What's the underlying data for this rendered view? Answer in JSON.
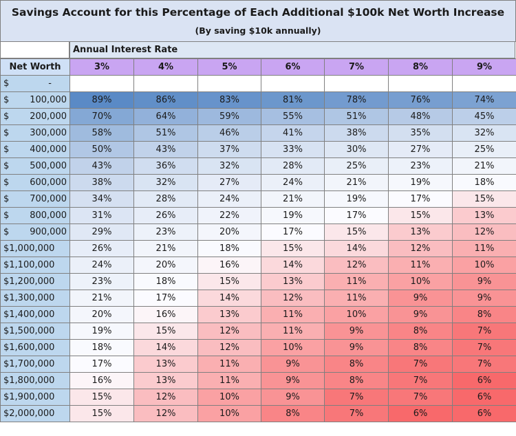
{
  "chart_data": {
    "type": "table",
    "title": "Savings Account for this Percentage of Each Additional $100k Net Worth Increase",
    "subtitle": "(By saving $10k annually)",
    "column_group_label": "Annual Interest Rate",
    "row_header": "Net Worth",
    "columns": [
      "3%",
      "4%",
      "5%",
      "6%",
      "7%",
      "8%",
      "9%"
    ],
    "rows": [
      {
        "label": [
          "$",
          "-"
        ],
        "values": [
          "",
          "",
          "",
          "",
          "",
          "",
          ""
        ]
      },
      {
        "label": [
          "$",
          "100,000"
        ],
        "values": [
          "89%",
          "86%",
          "83%",
          "81%",
          "78%",
          "76%",
          "74%"
        ]
      },
      {
        "label": [
          "$",
          "200,000"
        ],
        "values": [
          "70%",
          "64%",
          "59%",
          "55%",
          "51%",
          "48%",
          "45%"
        ]
      },
      {
        "label": [
          "$",
          "300,000"
        ],
        "values": [
          "58%",
          "51%",
          "46%",
          "41%",
          "38%",
          "35%",
          "32%"
        ]
      },
      {
        "label": [
          "$",
          "400,000"
        ],
        "values": [
          "50%",
          "43%",
          "37%",
          "33%",
          "30%",
          "27%",
          "25%"
        ]
      },
      {
        "label": [
          "$",
          "500,000"
        ],
        "values": [
          "43%",
          "36%",
          "32%",
          "28%",
          "25%",
          "23%",
          "21%"
        ]
      },
      {
        "label": [
          "$",
          "600,000"
        ],
        "values": [
          "38%",
          "32%",
          "27%",
          "24%",
          "21%",
          "19%",
          "18%"
        ]
      },
      {
        "label": [
          "$",
          "700,000"
        ],
        "values": [
          "34%",
          "28%",
          "24%",
          "21%",
          "19%",
          "17%",
          "15%"
        ]
      },
      {
        "label": [
          "$",
          "800,000"
        ],
        "values": [
          "31%",
          "26%",
          "22%",
          "19%",
          "17%",
          "15%",
          "13%"
        ]
      },
      {
        "label": [
          "$",
          "900,000"
        ],
        "values": [
          "29%",
          "23%",
          "20%",
          "17%",
          "15%",
          "13%",
          "12%"
        ]
      },
      {
        "label": [
          "$1,000,000",
          ""
        ],
        "values": [
          "26%",
          "21%",
          "18%",
          "15%",
          "14%",
          "12%",
          "11%"
        ]
      },
      {
        "label": [
          "$1,100,000",
          ""
        ],
        "values": [
          "24%",
          "20%",
          "16%",
          "14%",
          "12%",
          "11%",
          "10%"
        ]
      },
      {
        "label": [
          "$1,200,000",
          ""
        ],
        "values": [
          "23%",
          "18%",
          "15%",
          "13%",
          "11%",
          "10%",
          "9%"
        ]
      },
      {
        "label": [
          "$1,300,000",
          ""
        ],
        "values": [
          "21%",
          "17%",
          "14%",
          "12%",
          "11%",
          "9%",
          "9%"
        ]
      },
      {
        "label": [
          "$1,400,000",
          ""
        ],
        "values": [
          "20%",
          "16%",
          "13%",
          "11%",
          "10%",
          "9%",
          "8%"
        ]
      },
      {
        "label": [
          "$1,500,000",
          ""
        ],
        "values": [
          "19%",
          "15%",
          "12%",
          "11%",
          "9%",
          "8%",
          "7%"
        ]
      },
      {
        "label": [
          "$1,600,000",
          ""
        ],
        "values": [
          "18%",
          "14%",
          "12%",
          "10%",
          "9%",
          "8%",
          "7%"
        ]
      },
      {
        "label": [
          "$1,700,000",
          ""
        ],
        "values": [
          "17%",
          "13%",
          "11%",
          "9%",
          "8%",
          "7%",
          "7%"
        ]
      },
      {
        "label": [
          "$1,800,000",
          ""
        ],
        "values": [
          "16%",
          "13%",
          "11%",
          "9%",
          "8%",
          "7%",
          "6%"
        ]
      },
      {
        "label": [
          "$1,900,000",
          ""
        ],
        "values": [
          "15%",
          "12%",
          "10%",
          "9%",
          "7%",
          "7%",
          "6%"
        ]
      },
      {
        "label": [
          "$2,000,000",
          ""
        ],
        "values": [
          "15%",
          "12%",
          "10%",
          "8%",
          "7%",
          "6%",
          "6%"
        ]
      }
    ],
    "color_scale": {
      "low": "#f8696b",
      "mid": "#fcfcff",
      "high": "#5a8ac6"
    },
    "header_colors": {
      "title": "#dae3f3",
      "net_worth": "#bdd7ee",
      "rate": "#c9a5f2"
    }
  }
}
